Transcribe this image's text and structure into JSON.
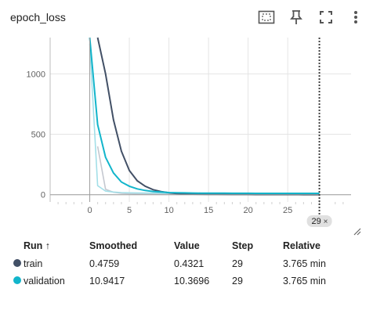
{
  "card": {
    "title": "epoch_loss"
  },
  "toolbar": {
    "icons": [
      "fit-domain-icon",
      "pin-icon",
      "fullscreen-icon",
      "more-vert-icon"
    ]
  },
  "chart_data": {
    "type": "line",
    "title": "",
    "xlabel": "",
    "ylabel": "",
    "xlim": [
      -5,
      33
    ],
    "ylim": [
      -60,
      1300
    ],
    "x_ticks": [
      "0",
      "5",
      "10",
      "15",
      "20",
      "25"
    ],
    "x_tick_values": [
      0,
      5,
      10,
      15,
      20,
      25
    ],
    "y_ticks": [
      "0",
      "500",
      "1000"
    ],
    "y_tick_values": [
      0,
      500,
      1000
    ],
    "grid": true,
    "cursor_step": 29,
    "cursor_label": "29",
    "series": [
      {
        "name": "train",
        "color": "#425066",
        "raw_color": "#c4c8d0",
        "x": [
          1,
          2,
          3,
          4,
          5,
          6,
          7,
          8,
          9,
          10,
          11,
          12,
          13,
          14,
          15,
          16,
          17,
          18,
          19,
          20,
          21,
          22,
          23,
          24,
          25,
          26,
          27,
          28,
          29
        ],
        "smoothed": [
          1300,
          1000,
          620,
          360,
          200,
          115,
          70,
          42,
          26,
          16,
          10,
          7,
          5,
          4,
          3,
          2.5,
          2,
          1.8,
          1.5,
          1.3,
          1.1,
          1,
          0.9,
          0.8,
          0.7,
          0.6,
          0.55,
          0.5,
          0.4759
        ],
        "raw": [
          400,
          45,
          20,
          12,
          8,
          6,
          5,
          4,
          3,
          2.5,
          2,
          1.8,
          1.5,
          1.3,
          1.2,
          1.1,
          1,
          0.9,
          0.8,
          0.75,
          0.7,
          0.65,
          0.6,
          0.55,
          0.5,
          0.48,
          0.46,
          0.44,
          0.4321
        ]
      },
      {
        "name": "validation",
        "color": "#12b5cb",
        "raw_color": "#a3dfe8",
        "x": [
          0,
          1,
          2,
          3,
          4,
          5,
          6,
          7,
          8,
          9,
          10,
          11,
          12,
          13,
          14,
          15,
          16,
          17,
          18,
          19,
          20,
          21,
          22,
          23,
          24,
          25,
          26,
          27,
          28,
          29
        ],
        "smoothed": [
          1300,
          580,
          310,
          180,
          105,
          70,
          48,
          35,
          27,
          22,
          18,
          16,
          15,
          14,
          13.5,
          13,
          12.7,
          12.4,
          12.1,
          11.9,
          11.7,
          11.5,
          11.4,
          11.3,
          11.2,
          11.1,
          11.05,
          11,
          10.97,
          10.9417
        ],
        "raw": [
          1250,
          75,
          30,
          22,
          18,
          16,
          15,
          14,
          13.5,
          13,
          12.8,
          12.5,
          12.3,
          12.1,
          11.9,
          11.7,
          11.5,
          11.3,
          11.1,
          11,
          10.9,
          10.8,
          10.7,
          10.65,
          10.6,
          10.55,
          10.5,
          10.45,
          10.4,
          10.3696
        ]
      }
    ]
  },
  "table": {
    "headers": {
      "run": "Run ↑",
      "smoothed": "Smoothed",
      "value": "Value",
      "step": "Step",
      "relative": "Relative"
    },
    "rows": [
      {
        "run": "train",
        "smoothed": "0.4759",
        "value": "0.4321",
        "step": "29",
        "relative": "3.765 min",
        "color": "#425066"
      },
      {
        "run": "validation",
        "smoothed": "10.9417",
        "value": "10.3696",
        "step": "29",
        "relative": "3.765 min",
        "color": "#12b5cb"
      }
    ]
  }
}
